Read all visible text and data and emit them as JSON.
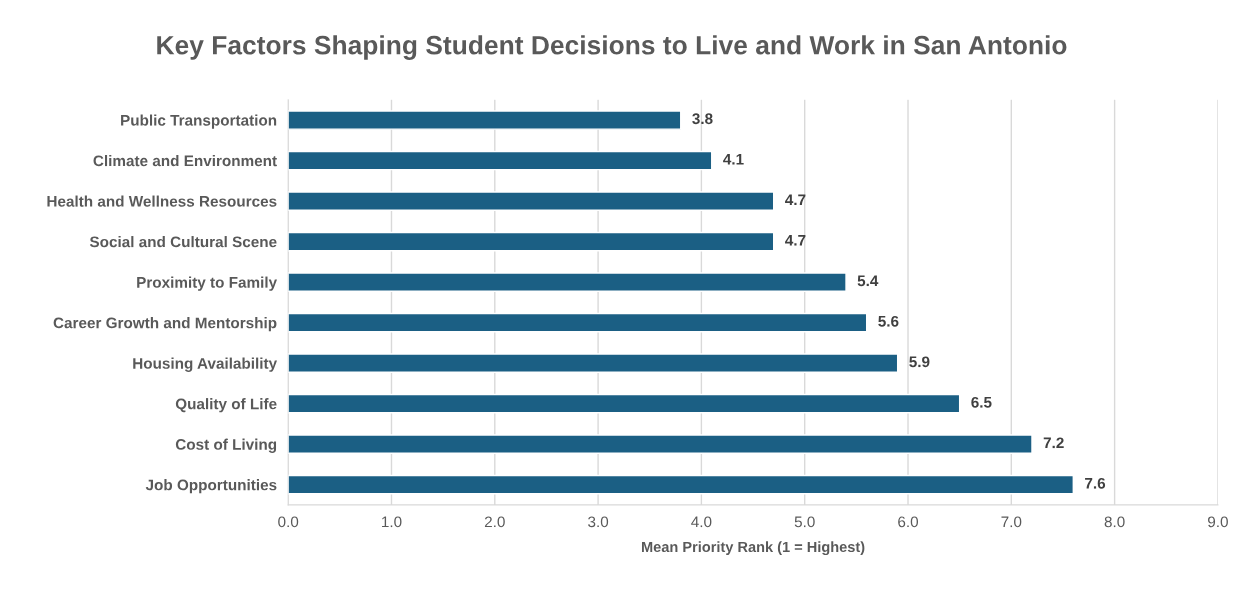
{
  "chart_data": {
    "type": "bar",
    "orientation": "horizontal",
    "title": "Key Factors Shaping Student Decisions to Live and Work in San Antonio",
    "xlabel": "Mean Priority Rank (1 = Highest)",
    "categories": [
      "Public Transportation",
      "Climate and Environment",
      "Health and Wellness Resources",
      "Social and Cultural Scene",
      "Proximity to Family",
      "Career Growth and Mentorship",
      "Housing Availability",
      "Quality of Life",
      "Cost of Living",
      "Job Opportunities"
    ],
    "values": [
      3.8,
      4.1,
      4.7,
      4.7,
      5.4,
      5.6,
      5.9,
      6.5,
      7.2,
      7.6
    ],
    "color": "#1b5f84",
    "xlim": [
      0,
      9
    ],
    "xticks": [
      {
        "value": 0,
        "label": "0.0"
      },
      {
        "value": 1,
        "label": "1.0"
      },
      {
        "value": 2,
        "label": "2.0"
      },
      {
        "value": 3,
        "label": "3.0"
      },
      {
        "value": 4,
        "label": "4.0"
      },
      {
        "value": 5,
        "label": "5.0"
      },
      {
        "value": 6,
        "label": "6.0"
      },
      {
        "value": 7,
        "label": "7.0"
      },
      {
        "value": 8,
        "label": "8.0"
      },
      {
        "value": 9,
        "label": "9.0"
      }
    ],
    "grid": "x",
    "data_labels": true
  }
}
